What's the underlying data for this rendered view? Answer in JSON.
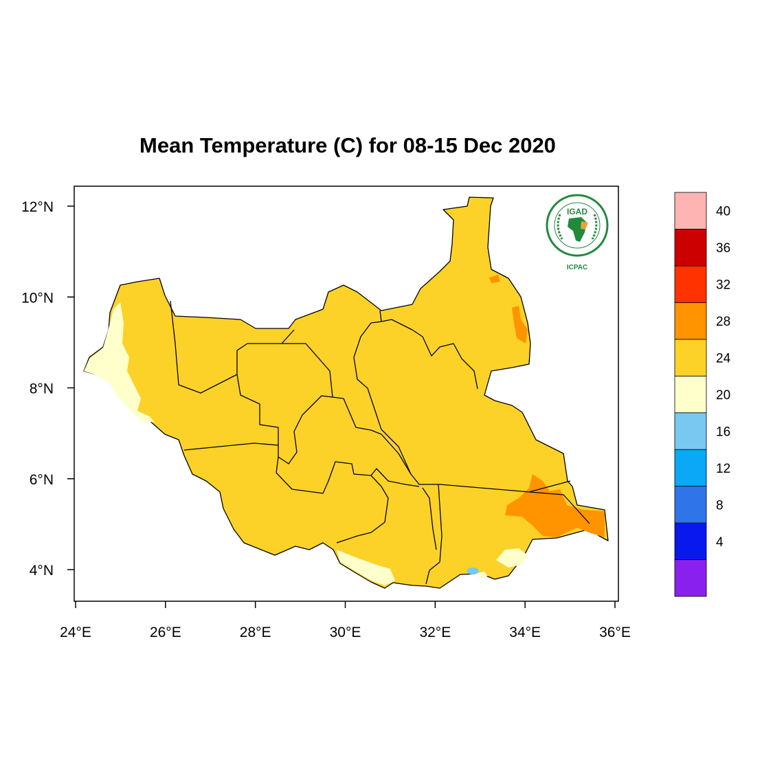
{
  "title": "Mean Temperature (C) for 08-15 Dec 2020",
  "map": {
    "lon_range": [
      24,
      36
    ],
    "lat_range": [
      3.4,
      12.45
    ],
    "x_ticks": [
      {
        "value": 24,
        "label": "24°E"
      },
      {
        "value": 26,
        "label": "26°E"
      },
      {
        "value": 28,
        "label": "28°E"
      },
      {
        "value": 30,
        "label": "30°E"
      },
      {
        "value": 32,
        "label": "32°E"
      },
      {
        "value": 34,
        "label": "34°E"
      },
      {
        "value": 36,
        "label": "36°E"
      }
    ],
    "y_ticks": [
      {
        "value": 12,
        "label": "12°N"
      },
      {
        "value": 10,
        "label": "10°N"
      },
      {
        "value": 8,
        "label": "8°N"
      },
      {
        "value": 6,
        "label": "6°N"
      },
      {
        "value": 4,
        "label": "4°N"
      }
    ]
  },
  "colorbar": {
    "colors": [
      "#8a20ee",
      "#0a18f0",
      "#3074ea",
      "#0aa8f6",
      "#78c8f2",
      "#ffffcc",
      "#fcd228",
      "#ff9400",
      "#ff3200",
      "#cc0000",
      "#ffb4b4"
    ],
    "labels": [
      "4",
      "8",
      "12",
      "16",
      "20",
      "24",
      "28",
      "32",
      "36",
      "40"
    ]
  },
  "logo": {
    "name": "IGAD",
    "caption": "ICPAC",
    "ring_text": "INTERGOVERNMENTAL AUTHORITY ON DEVELOPMENT",
    "ring_text_fr": "AUTORITE INTERGOUVERNEMENTALE POUR LE DEVELOPPEMENT",
    "green": "#1f8a3c"
  }
}
